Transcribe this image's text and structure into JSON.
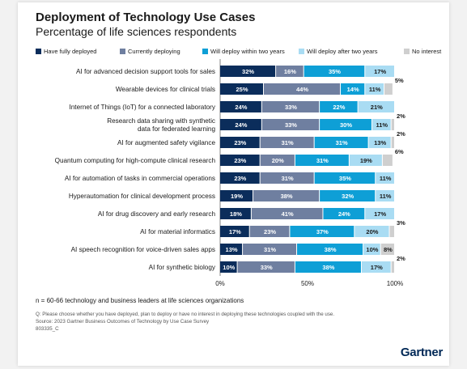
{
  "title": "Deployment of Technology Use Cases",
  "subtitle": "Percentage of life sciences respondents",
  "note": "n = 60-66 technology and business leaders at life sciences organizations",
  "question": "Q: Please choose whether you have deployed, plan to deploy or have no interest in deploying these technologies coupled with the use.",
  "source": "Source: 2023 Gartner Business Outcomes of Technology by Use Case Survey",
  "id_code": "803335_C",
  "logo": "Gartner",
  "chart_data": {
    "type": "bar",
    "orientation": "horizontal",
    "stacked": true,
    "xlim": [
      0,
      100
    ],
    "x_ticks": [
      "0%",
      "50%",
      "100%"
    ],
    "legend_position": "top",
    "categories": [
      "AI for advanced decision support tools for sales",
      "Wearable devices for clinical trials",
      "Internet of Things (IoT) for a connected laboratory",
      "Research data sharing with synthetic data for federated learning",
      "AI for augmented safety vigilance",
      "Quantum computing for high-compute clinical research",
      "AI for automation of tasks in commercial operations",
      "Hyperautomation for clinical development process",
      "AI for drug discovery and early research",
      "AI for material informatics",
      "AI speech recognition for voice-driven sales apps",
      "AI for synthetic biology"
    ],
    "series": [
      {
        "name": "Have fully deployed",
        "color": "#0b2d5b",
        "values": [
          32,
          25,
          24,
          24,
          23,
          23,
          23,
          19,
          18,
          17,
          13,
          10
        ]
      },
      {
        "name": "Currently deploying",
        "color": "#6f7fa0",
        "values": [
          16,
          44,
          33,
          33,
          31,
          20,
          31,
          38,
          41,
          23,
          31,
          33
        ]
      },
      {
        "name": "Will deploy within two years",
        "color": "#0e9fd6",
        "values": [
          35,
          14,
          22,
          30,
          31,
          31,
          35,
          32,
          24,
          37,
          38,
          38
        ]
      },
      {
        "name": "Will deploy after two years",
        "color": "#a9dcf3",
        "values": [
          17,
          11,
          21,
          11,
          13,
          19,
          11,
          11,
          17,
          20,
          10,
          17
        ]
      },
      {
        "name": "No interest",
        "color": "#cfcfcf",
        "values": [
          0,
          5,
          0,
          2,
          2,
          6,
          0,
          0,
          0,
          3,
          8,
          2
        ]
      }
    ]
  }
}
